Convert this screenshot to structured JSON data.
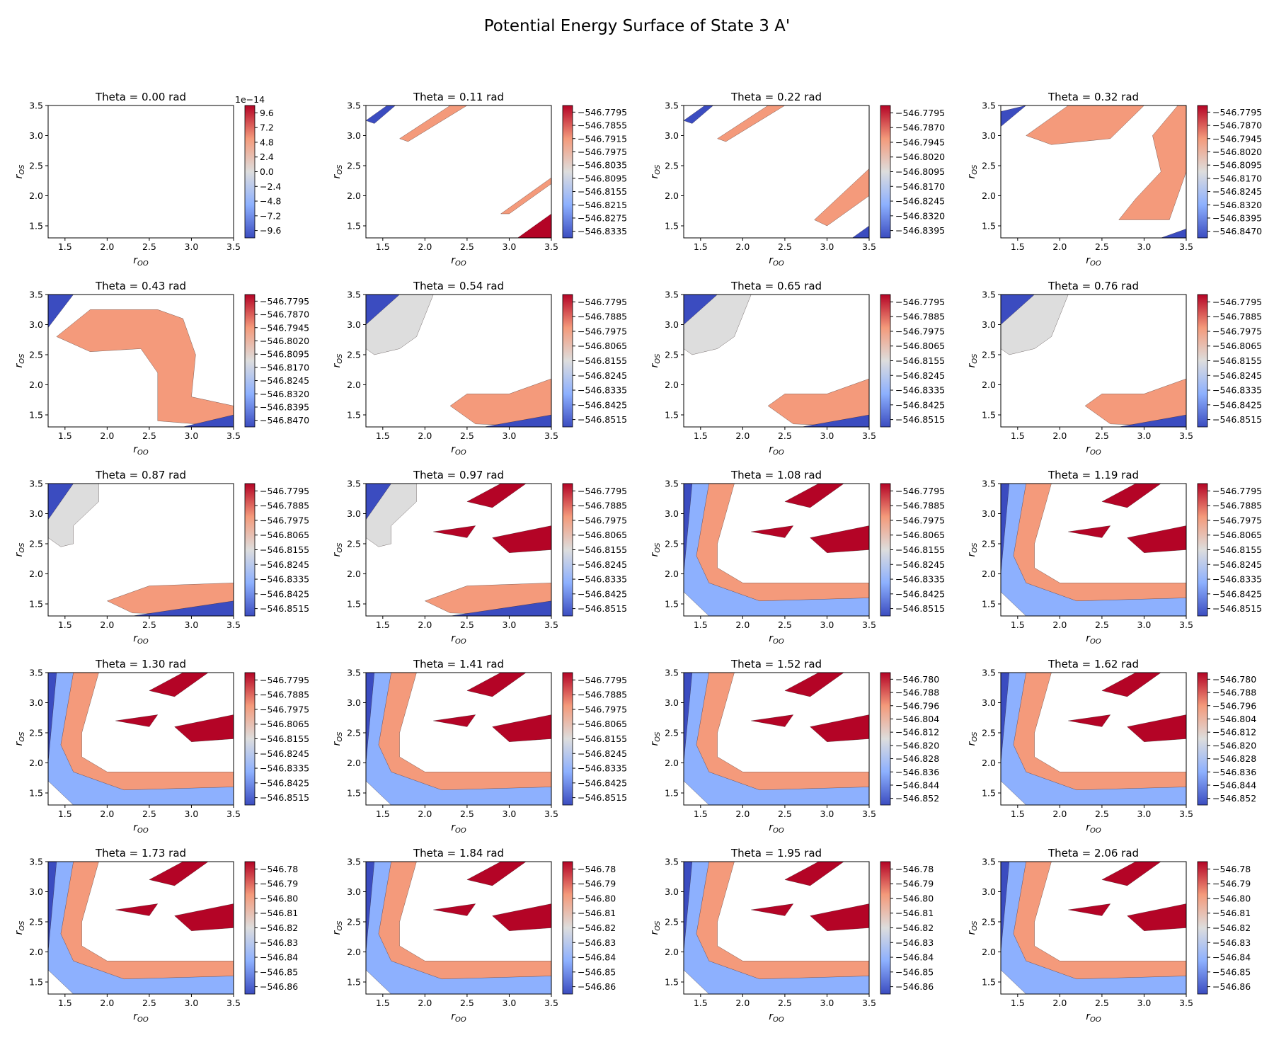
{
  "figure": {
    "title": "Potential Energy Surface of State 3 A'"
  },
  "chart_data": {
    "type": "contour",
    "layout": {
      "rows": 5,
      "cols": 4
    },
    "xlabel": "r_OO",
    "ylabel": "r_OS",
    "xlim": [
      1.3,
      3.5
    ],
    "ylim": [
      1.3,
      3.5
    ],
    "xticks": [
      "1.5",
      "2.0",
      "2.5",
      "3.0",
      "3.5"
    ],
    "yticks": [
      "1.5",
      "2.0",
      "2.5",
      "3.0",
      "3.5"
    ],
    "colormap": "coolwarm",
    "colormap_colors": [
      "#3b4cc0",
      "#8db0fe",
      "#dddddd",
      "#f49a7b",
      "#b40426"
    ],
    "panels": [
      {
        "title": "Theta = 0.00 rad",
        "cbar_ticks": [
          "9.6",
          "7.2",
          "4.8",
          "2.4",
          "0.0",
          "−2.4",
          "−4.8",
          "−7.2",
          "−9.6"
        ],
        "cbar_offset": "1e−14",
        "regions": []
      },
      {
        "title": "Theta = 0.11 rad",
        "cbar_ticks": [
          "−546.7795",
          "−546.7855",
          "−546.7915",
          "−546.7975",
          "−546.8035",
          "−546.8095",
          "−546.8155",
          "−546.8215",
          "−546.8275",
          "−546.8335"
        ],
        "regions": [
          "diag_upper",
          "diag_lower_small"
        ]
      },
      {
        "title": "Theta = 0.22 rad",
        "cbar_ticks": [
          "−546.7795",
          "−546.7870",
          "−546.7945",
          "−546.8020",
          "−546.8095",
          "−546.8170",
          "−546.8245",
          "−546.8320",
          "−546.8395"
        ],
        "regions": [
          "diag_upper",
          "diag_lower"
        ]
      },
      {
        "title": "Theta = 0.32 rad",
        "cbar_ticks": [
          "−546.7795",
          "−546.7870",
          "−546.7945",
          "−546.8020",
          "−546.8095",
          "−546.8170",
          "−546.8245",
          "−546.8320",
          "−546.8395",
          "−546.8470"
        ],
        "regions": [
          "arch"
        ]
      },
      {
        "title": "Theta = 0.43 rad",
        "cbar_ticks": [
          "−546.7795",
          "−546.7870",
          "−546.7945",
          "−546.8020",
          "−546.8095",
          "−546.8170",
          "−546.8245",
          "−546.8320",
          "−546.8395",
          "−546.8470"
        ],
        "regions": [
          "band_z"
        ]
      },
      {
        "title": "Theta = 0.54 rad",
        "cbar_ticks": [
          "−546.7795",
          "−546.7885",
          "−546.7975",
          "−546.8065",
          "−546.8155",
          "−546.8245",
          "−546.8335",
          "−546.8425",
          "−546.8515"
        ],
        "regions": [
          "topleft_blob",
          "bottomright_blob"
        ]
      },
      {
        "title": "Theta = 0.65 rad",
        "cbar_ticks": [
          "−546.7795",
          "−546.7885",
          "−546.7975",
          "−546.8065",
          "−546.8155",
          "−546.8245",
          "−546.8335",
          "−546.8425",
          "−546.8515"
        ],
        "regions": [
          "topleft_blob",
          "bottomright_blob"
        ]
      },
      {
        "title": "Theta = 0.76 rad",
        "cbar_ticks": [
          "−546.7795",
          "−546.7885",
          "−546.7975",
          "−546.8065",
          "−546.8155",
          "−546.8245",
          "−546.8335",
          "−546.8425",
          "−546.8515"
        ],
        "regions": [
          "topleft_blob",
          "bottomright_blob"
        ]
      },
      {
        "title": "Theta = 0.87 rad",
        "cbar_ticks": [
          "−546.7795",
          "−546.7885",
          "−546.7975",
          "−546.8065",
          "−546.8155",
          "−546.8245",
          "−546.8335",
          "−546.8425",
          "−546.8515"
        ],
        "regions": [
          "left_column",
          "bottom_band"
        ]
      },
      {
        "title": "Theta = 0.97 rad",
        "cbar_ticks": [
          "−546.7795",
          "−546.7885",
          "−546.7975",
          "−546.8065",
          "−546.8155",
          "−546.8245",
          "−546.8335",
          "−546.8425",
          "−546.8515"
        ],
        "regions": [
          "left_column",
          "bottom_band",
          "red_patches"
        ]
      },
      {
        "title": "Theta = 1.08 rad",
        "cbar_ticks": [
          "−546.7795",
          "−546.7885",
          "−546.7975",
          "−546.8065",
          "−546.8155",
          "−546.8245",
          "−546.8335",
          "−546.8425",
          "−546.8515"
        ],
        "regions": [
          "l_shape",
          "red_patches"
        ]
      },
      {
        "title": "Theta = 1.19 rad",
        "cbar_ticks": [
          "−546.7795",
          "−546.7885",
          "−546.7975",
          "−546.8065",
          "−546.8155",
          "−546.8245",
          "−546.8335",
          "−546.8425",
          "−546.8515"
        ],
        "regions": [
          "l_shape",
          "red_patches"
        ]
      },
      {
        "title": "Theta = 1.30 rad",
        "cbar_ticks": [
          "−546.7795",
          "−546.7885",
          "−546.7975",
          "−546.8065",
          "−546.8155",
          "−546.8245",
          "−546.8335",
          "−546.8425",
          "−546.8515"
        ],
        "regions": [
          "l_shape",
          "red_patches"
        ]
      },
      {
        "title": "Theta = 1.41 rad",
        "cbar_ticks": [
          "−546.7795",
          "−546.7885",
          "−546.7975",
          "−546.8065",
          "−546.8155",
          "−546.8245",
          "−546.8335",
          "−546.8425",
          "−546.8515"
        ],
        "regions": [
          "l_shape",
          "red_patches"
        ]
      },
      {
        "title": "Theta = 1.52 rad",
        "cbar_ticks": [
          "−546.780",
          "−546.788",
          "−546.796",
          "−546.804",
          "−546.812",
          "−546.820",
          "−546.828",
          "−546.836",
          "−546.844",
          "−546.852"
        ],
        "regions": [
          "l_shape",
          "red_patches"
        ]
      },
      {
        "title": "Theta = 1.62 rad",
        "cbar_ticks": [
          "−546.780",
          "−546.788",
          "−546.796",
          "−546.804",
          "−546.812",
          "−546.820",
          "−546.828",
          "−546.836",
          "−546.844",
          "−546.852"
        ],
        "regions": [
          "l_shape",
          "red_patches"
        ]
      },
      {
        "title": "Theta = 1.73 rad",
        "cbar_ticks": [
          "−546.78",
          "−546.79",
          "−546.80",
          "−546.81",
          "−546.82",
          "−546.83",
          "−546.84",
          "−546.85",
          "−546.86"
        ],
        "regions": [
          "l_shape",
          "red_patches"
        ]
      },
      {
        "title": "Theta = 1.84 rad",
        "cbar_ticks": [
          "−546.78",
          "−546.79",
          "−546.80",
          "−546.81",
          "−546.82",
          "−546.83",
          "−546.84",
          "−546.85",
          "−546.86"
        ],
        "regions": [
          "l_shape",
          "red_patches"
        ]
      },
      {
        "title": "Theta = 1.95 rad",
        "cbar_ticks": [
          "−546.78",
          "−546.79",
          "−546.80",
          "−546.81",
          "−546.82",
          "−546.83",
          "−546.84",
          "−546.85",
          "−546.86"
        ],
        "regions": [
          "l_shape",
          "red_patches"
        ]
      },
      {
        "title": "Theta = 2.06 rad",
        "cbar_ticks": [
          "−546.78",
          "−546.79",
          "−546.80",
          "−546.81",
          "−546.82",
          "−546.83",
          "−546.84",
          "−546.85",
          "−546.86"
        ],
        "regions": [
          "l_shape",
          "red_patches"
        ]
      }
    ]
  }
}
